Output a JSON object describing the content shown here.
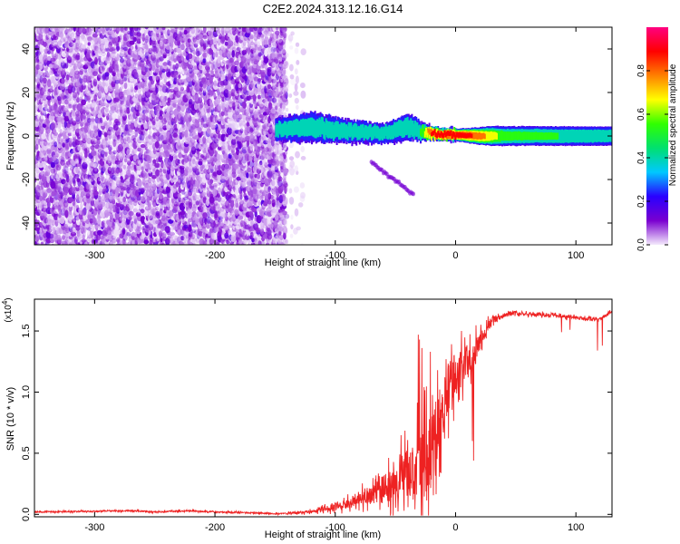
{
  "title": "C2E2.2024.313.12.16.G14",
  "chart_data": [
    {
      "type": "heatmap",
      "xlabel": "Height of straight line (km)",
      "ylabel": "Frequency (Hz)",
      "xlim": [
        -350,
        130
      ],
      "ylim": [
        -50,
        50
      ],
      "xticks": [
        -300,
        -200,
        -100,
        0,
        100
      ],
      "yticks": [
        -40,
        -20,
        0,
        20,
        40
      ],
      "colorbar": {
        "label": "Normalized spectral amplitude",
        "range": [
          0,
          1
        ],
        "ticks": [
          "0.0",
          "0.2",
          "0.4",
          "0.6",
          "0.8"
        ],
        "tick_values": [
          0.0,
          0.2,
          0.4,
          0.6,
          0.8
        ],
        "colors": [
          "#f4eafc",
          "#7a00d0",
          "#2a00ff",
          "#00c8ff",
          "#00e070",
          "#30ff00",
          "#ffff00",
          "#ff8000",
          "#ff0000",
          "#ff0080"
        ]
      },
      "regions": [
        {
          "description": "noise",
          "x": [
            -350,
            -140
          ],
          "y": [
            -50,
            50
          ],
          "amplitude": [
            0.0,
            0.15
          ]
        },
        {
          "description": "sparse noise",
          "x": [
            -150,
            -125
          ],
          "y": [
            -50,
            50
          ],
          "amplitude": [
            0.0,
            0.05
          ]
        },
        {
          "description": "signal band",
          "x": [
            -150,
            130
          ],
          "center_hz": 0,
          "amplitude": [
            0.2,
            1.0
          ]
        }
      ],
      "signal_band_center_hz": [
        [
          -150,
          3
        ],
        [
          -120,
          4
        ],
        [
          -90,
          2
        ],
        [
          -60,
          1
        ],
        [
          -40,
          4
        ],
        [
          -30,
          2
        ],
        [
          -20,
          1
        ],
        [
          0,
          0.5
        ],
        [
          20,
          0
        ],
        [
          60,
          0
        ],
        [
          100,
          0
        ],
        [
          130,
          0
        ]
      ],
      "signal_band_halfwidth_hz": [
        [
          -150,
          6
        ],
        [
          -120,
          8
        ],
        [
          -90,
          6
        ],
        [
          -60,
          5
        ],
        [
          -40,
          7
        ],
        [
          -20,
          3
        ],
        [
          0,
          3
        ],
        [
          30,
          5
        ],
        [
          60,
          5
        ],
        [
          100,
          5
        ],
        [
          130,
          5
        ]
      ],
      "signal_band_peak_amplitude": [
        [
          -150,
          0.4
        ],
        [
          -100,
          0.45
        ],
        [
          -60,
          0.45
        ],
        [
          -30,
          0.5
        ],
        [
          -20,
          0.9
        ],
        [
          0,
          0.95
        ],
        [
          20,
          0.8
        ],
        [
          40,
          0.55
        ],
        [
          130,
          0.45
        ]
      ],
      "secondary_tail": {
        "x": [
          -70,
          -35
        ],
        "y_hz": [
          -12,
          -27
        ],
        "amplitude": 0.12
      }
    },
    {
      "type": "line",
      "xlabel": "Height of straight line (km)",
      "ylabel": "SNR (10 * v/v)",
      "y_multiplier_label": "(x10",
      "y_multiplier_exponent": "4",
      "y_multiplier_close": ")",
      "xlim": [
        -350,
        130
      ],
      "ylim": [
        -0.02,
        1.76
      ],
      "xticks": [
        -300,
        -200,
        -100,
        0,
        100
      ],
      "yticks": [
        0.0,
        0.5,
        1.0,
        1.5
      ],
      "ytick_labels": [
        "0.0",
        "0.5",
        "1.0",
        "1.5"
      ],
      "color": "#ee2222",
      "series": [
        {
          "baseline": [
            [
              -350,
              0.02
            ],
            [
              -300,
              0.025
            ],
            [
              -270,
              0.03
            ],
            [
              -250,
              0.02
            ],
            [
              -220,
              0.03
            ],
            [
              -205,
              0.02
            ],
            [
              -180,
              0.015
            ],
            [
              -160,
              0.01
            ],
            [
              -150,
              0.005
            ],
            [
              -140,
              0.01
            ],
            [
              -130,
              0.015
            ],
            [
              -120,
              0.02
            ],
            [
              -110,
              0.04
            ],
            [
              -100,
              0.06
            ],
            [
              -90,
              0.09
            ],
            [
              -80,
              0.12
            ],
            [
              -70,
              0.16
            ],
            [
              -60,
              0.2
            ],
            [
              -50,
              0.26
            ],
            [
              -40,
              0.33
            ],
            [
              -30,
              0.42
            ],
            [
              -22,
              0.48
            ],
            [
              -15,
              0.7
            ],
            [
              -10,
              0.9
            ],
            [
              -5,
              1.05
            ],
            [
              0,
              1.15
            ],
            [
              5,
              1.2
            ],
            [
              10,
              1.25
            ],
            [
              15,
              1.3
            ],
            [
              20,
              1.4
            ],
            [
              25,
              1.48
            ],
            [
              30,
              1.58
            ],
            [
              40,
              1.63
            ],
            [
              50,
              1.645
            ],
            [
              60,
              1.64
            ],
            [
              70,
              1.635
            ],
            [
              80,
              1.63
            ],
            [
              90,
              1.62
            ],
            [
              100,
              1.61
            ],
            [
              110,
              1.6
            ],
            [
              120,
              1.6
            ],
            [
              125,
              1.63
            ],
            [
              130,
              1.66
            ]
          ],
          "noise_amplitude": [
            [
              -350,
              0.012
            ],
            [
              -150,
              0.012
            ],
            [
              -120,
              0.03
            ],
            [
              -90,
              0.08
            ],
            [
              -70,
              0.15
            ],
            [
              -50,
              0.3
            ],
            [
              -35,
              0.5
            ],
            [
              -25,
              0.7
            ],
            [
              -15,
              0.55
            ],
            [
              -5,
              0.4
            ],
            [
              5,
              0.3
            ],
            [
              15,
              0.25
            ],
            [
              25,
              0.12
            ],
            [
              35,
              0.04
            ],
            [
              130,
              0.025
            ]
          ],
          "peaks": [
            [
              -31,
              1.47
            ],
            [
              -30,
              1.43
            ],
            [
              -28,
              1.36
            ],
            [
              -21,
              1.33
            ],
            [
              -15,
              1.18
            ],
            [
              -8,
              1.27
            ],
            [
              5,
              1.5
            ],
            [
              13,
              1.2
            ]
          ],
          "dips": [
            [
              15,
              0.44
            ],
            [
              14,
              0.6
            ],
            [
              88,
              1.49
            ],
            [
              95,
              1.51
            ],
            [
              118,
              1.34
            ],
            [
              122,
              1.38
            ]
          ]
        }
      ]
    }
  ]
}
